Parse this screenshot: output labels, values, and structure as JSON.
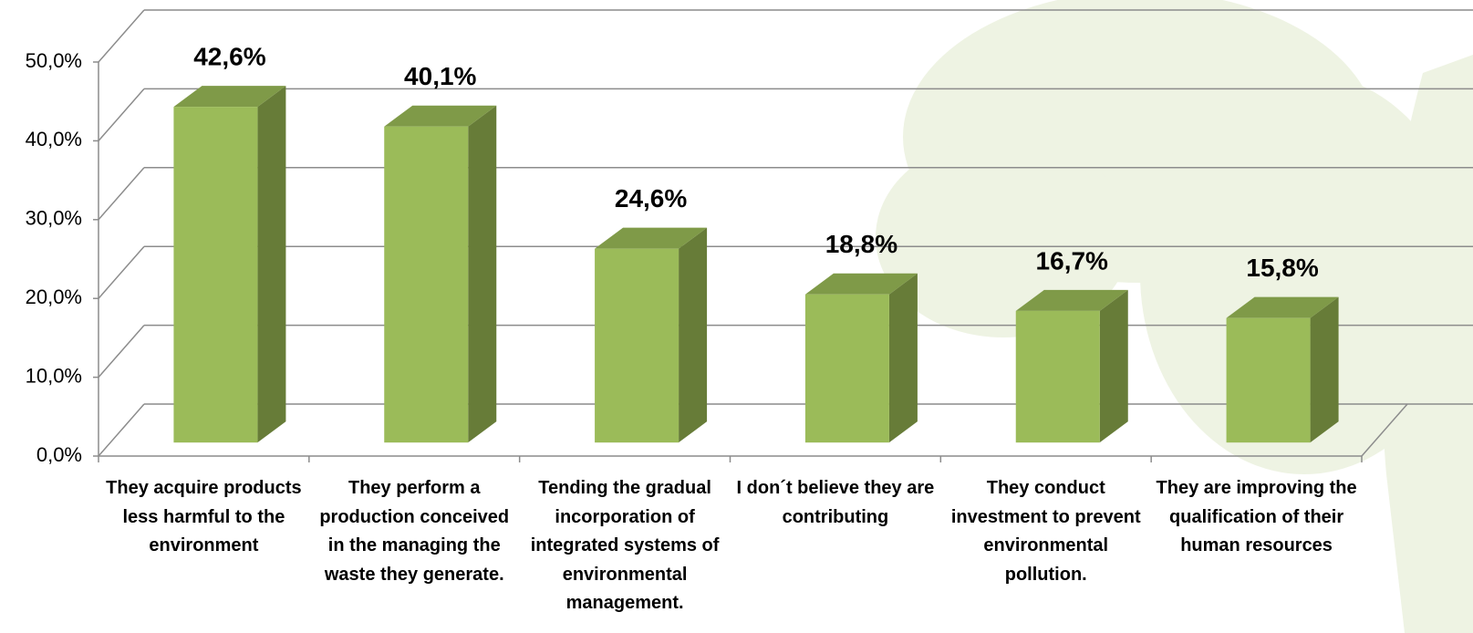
{
  "chart_data": {
    "type": "bar3d",
    "categories": [
      "They acquire products less harmful to the environment",
      "They perform a production conceived in the managing the waste they generate.",
      "Tending the gradual incorporation of integrated systems of environmental management.",
      "I don´t believe they are contributing",
      "They conduct investment to prevent environmental pollution.",
      "They are improving the qualification of their human resources"
    ],
    "values": [
      42.6,
      40.1,
      24.6,
      18.8,
      16.7,
      15.8
    ],
    "value_labels": [
      "42,6%",
      "40,1%",
      "24,6%",
      "18,8%",
      "16,7%",
      "15,8%"
    ],
    "color": "#9bbb59",
    "ylim": [
      0,
      50
    ],
    "yticks": [
      {
        "value": 0,
        "label": "0,0%"
      },
      {
        "value": 10,
        "label": "10,0%"
      },
      {
        "value": 20,
        "label": "20,0%"
      },
      {
        "value": 30,
        "label": "30,0%"
      },
      {
        "value": 40,
        "label": "40,0%"
      },
      {
        "value": 50,
        "label": "50,0%"
      }
    ],
    "grid": true
  }
}
